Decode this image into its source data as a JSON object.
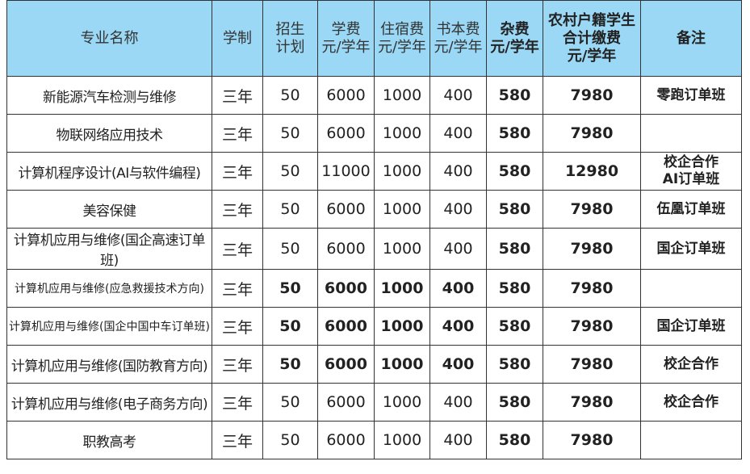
{
  "headers": [
    "专业名称",
    "学制",
    "招生\n计划",
    "学费\n元/学年",
    "住宿费\n元/学年",
    "书本费\n元/学年",
    "杂费\n元/学年",
    "农村户籍学生\n合计缴费\n元/学年",
    "备注"
  ],
  "header_color": "#9ad8f5",
  "rows": [
    {
      "name": "新能源汽车检测与维修",
      "years": "三年",
      "plan": "50",
      "tuition": "6000",
      "dorm": "1000",
      "books": "400",
      "misc": "580",
      "total": "7980",
      "note": "零跑订单班"
    },
    {
      "name": "物联网络应用技术",
      "years": "三年",
      "plan": "50",
      "tuition": "6000",
      "dorm": "1000",
      "books": "400",
      "misc": "580",
      "total": "7980",
      "note": ""
    },
    {
      "name": "计算机程序设计(AI与软件编程)",
      "years": "三年",
      "plan": "50",
      "tuition": "11000",
      "dorm": "1000",
      "books": "400",
      "misc": "580",
      "total": "12980",
      "note": "校企合作\nAI订单班"
    },
    {
      "name": "美容保健",
      "years": "三年",
      "plan": "50",
      "tuition": "6000",
      "dorm": "1000",
      "books": "400",
      "misc": "580",
      "total": "7980",
      "note": "伍凰订单班"
    },
    {
      "name": "计算机应用与维修(国企高速订单班)",
      "years": "三年",
      "plan": "50",
      "tuition": "6000",
      "dorm": "1000",
      "books": "400",
      "misc": "580",
      "total": "7980",
      "note": "国企订单班"
    },
    {
      "name": "计算机应用与维修(应急救援技术方向)",
      "years": "三年",
      "plan": "50",
      "tuition": "6000",
      "dorm": "1000",
      "books": "400",
      "misc": "580",
      "total": "7980",
      "note": ""
    },
    {
      "name": "计算机应用与维修(国企中国中车订单班)",
      "years": "三年",
      "plan": "50",
      "tuition": "6000",
      "dorm": "1000",
      "books": "400",
      "misc": "580",
      "total": "7980",
      "note": "国企订单班"
    },
    {
      "name": "计算机应用与维修(国防教育方向)",
      "years": "三年",
      "plan": "50",
      "tuition": "6000",
      "dorm": "1000",
      "books": "400",
      "misc": "580",
      "total": "7980",
      "note": "校企合作"
    },
    {
      "name": "计算机应用与维修(电子商务方向)",
      "years": "三年",
      "plan": "50",
      "tuition": "6000",
      "dorm": "1000",
      "books": "400",
      "misc": "580",
      "total": "7980",
      "note": "校企合作"
    },
    {
      "name": "职教高考",
      "years": "三年",
      "plan": "50",
      "tuition": "6000",
      "dorm": "1000",
      "books": "400",
      "misc": "580",
      "total": "7980",
      "note": ""
    }
  ]
}
